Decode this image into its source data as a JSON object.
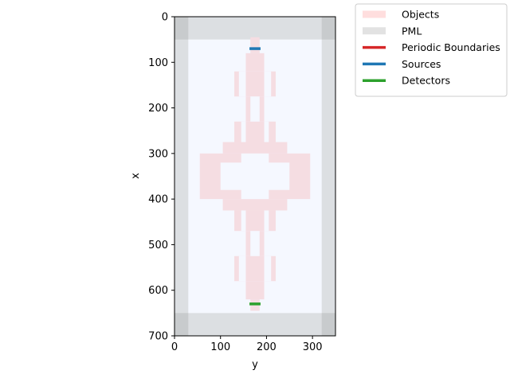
{
  "chart_data": {
    "type": "simulation-layout",
    "xlabel": "y",
    "ylabel": "x",
    "xlim": [
      0,
      350
    ],
    "ylim": [
      700,
      0
    ],
    "xticks": [
      0,
      100,
      200,
      300
    ],
    "yticks": [
      0,
      100,
      200,
      300,
      400,
      500,
      600,
      700
    ],
    "background_color": "#f5f8ff",
    "pml": {
      "color": "#dcdfe2",
      "corner_color": "#c8cbcd",
      "thickness_y": 30,
      "thickness_x": 50
    },
    "objects": {
      "color": "#f5dde2",
      "rects": [
        {
          "y0": 165,
          "y1": 185,
          "x0": 45,
          "x1": 80
        },
        {
          "y0": 155,
          "y1": 195,
          "x0": 80,
          "x1": 120
        },
        {
          "y0": 130,
          "y1": 220,
          "x0": 120,
          "x1": 175
        },
        {
          "y0": 155,
          "y1": 195,
          "x0": 175,
          "x1": 230
        },
        {
          "y0": 130,
          "y1": 220,
          "x0": 230,
          "x1": 275
        },
        {
          "y0": 105,
          "y1": 245,
          "x0": 275,
          "x1": 300
        },
        {
          "y0": 55,
          "y1": 295,
          "x0": 300,
          "x1": 400
        },
        {
          "y0": 105,
          "y1": 245,
          "x0": 400,
          "x1": 425
        },
        {
          "y0": 130,
          "y1": 220,
          "x0": 425,
          "x1": 470
        },
        {
          "y0": 155,
          "y1": 195,
          "x0": 470,
          "x1": 525
        },
        {
          "y0": 130,
          "y1": 220,
          "x0": 525,
          "x1": 580
        },
        {
          "y0": 155,
          "y1": 195,
          "x0": 580,
          "x1": 620
        },
        {
          "y0": 165,
          "y1": 185,
          "x0": 620,
          "x1": 645
        }
      ],
      "holes": [
        {
          "y0": 140,
          "y1": 155,
          "x0": 120,
          "x1": 175
        },
        {
          "y0": 195,
          "y1": 210,
          "x0": 120,
          "x1": 175
        },
        {
          "y0": 165,
          "y1": 185,
          "x0": 175,
          "x1": 230
        },
        {
          "y0": 145,
          "y1": 155,
          "x0": 230,
          "x1": 275
        },
        {
          "y0": 195,
          "y1": 205,
          "x0": 230,
          "x1": 275
        },
        {
          "y0": 100,
          "y1": 250,
          "x0": 320,
          "x1": 380
        },
        {
          "y0": 145,
          "y1": 205,
          "x0": 300,
          "x1": 400
        },
        {
          "y0": 145,
          "y1": 155,
          "x0": 425,
          "x1": 470
        },
        {
          "y0": 195,
          "y1": 205,
          "x0": 425,
          "x1": 470
        },
        {
          "y0": 165,
          "y1": 185,
          "x0": 470,
          "x1": 525
        },
        {
          "y0": 140,
          "y1": 155,
          "x0": 525,
          "x1": 580
        },
        {
          "y0": 195,
          "y1": 210,
          "x0": 525,
          "x1": 580
        }
      ]
    },
    "sources": {
      "color": "#1f77b4",
      "segments": [
        {
          "y0": 163,
          "y1": 187,
          "x": 70
        }
      ]
    },
    "detectors": {
      "color": "#2ca02c",
      "segments": [
        {
          "y0": 163,
          "y1": 187,
          "x": 630
        }
      ]
    },
    "legend": {
      "placement": "outside-top-right",
      "entries": [
        {
          "label": "Objects",
          "color": "#ffdede",
          "style": "thick"
        },
        {
          "label": "PML",
          "color": "#e2e2e2",
          "style": "thick"
        },
        {
          "label": "Periodic Boundaries",
          "color": "#d62728",
          "style": "line"
        },
        {
          "label": "Sources",
          "color": "#1f77b4",
          "style": "line"
        },
        {
          "label": "Detectors",
          "color": "#2ca02c",
          "style": "line"
        }
      ]
    }
  }
}
